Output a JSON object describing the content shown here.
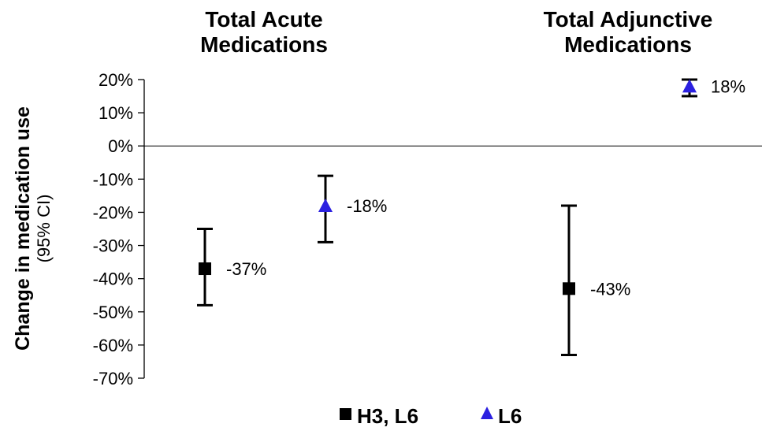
{
  "chart_data": {
    "type": "scatter",
    "ylabel": "Change in medication use",
    "ylabel_sub": "(95% CI)",
    "ylim": [
      -70,
      20
    ],
    "yticks": [
      20,
      10,
      0,
      -10,
      -20,
      -30,
      -40,
      -50,
      -60,
      -70
    ],
    "ytick_labels": [
      "20%",
      "10%",
      "0%",
      "-10%",
      "-20%",
      "-30%",
      "-40%",
      "-50%",
      "-60%",
      "-70%"
    ],
    "grid": false,
    "groups": [
      {
        "title_line1": "Total Acute",
        "title_line2": "Medications"
      },
      {
        "title_line1": "Total Adjunctive",
        "title_line2": "Medications"
      }
    ],
    "series": [
      {
        "name": "H3, L6",
        "marker": "square",
        "color": "#000000",
        "points": [
          {
            "group": 0,
            "value": -37,
            "ci_low": -48,
            "ci_high": -25,
            "label": "-37%"
          },
          {
            "group": 1,
            "value": -43,
            "ci_low": -63,
            "ci_high": -18,
            "label": "-43%"
          }
        ]
      },
      {
        "name": "L6",
        "marker": "triangle",
        "color": "#2b20e0",
        "points": [
          {
            "group": 0,
            "value": -18,
            "ci_low": -29,
            "ci_high": -9,
            "label": "-18%"
          },
          {
            "group": 1,
            "value": 18,
            "ci_low": 15,
            "ci_high": 20,
            "label": "18%"
          }
        ]
      }
    ],
    "legend_position": "bottom"
  }
}
